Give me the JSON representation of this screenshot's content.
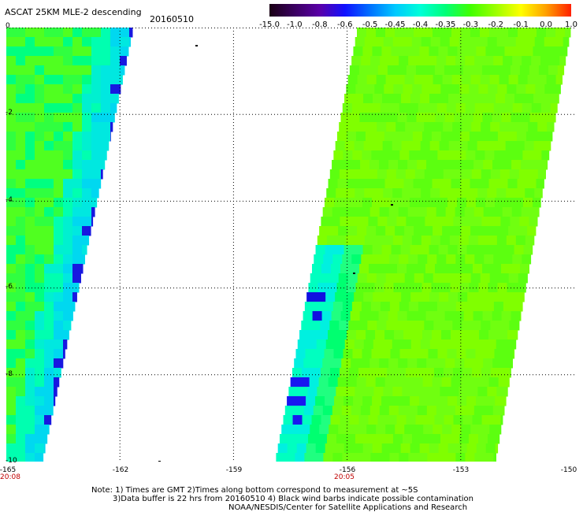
{
  "header": {
    "title": "ASCAT 25KM MLE-2 descending",
    "date": "20160510"
  },
  "colorbar": {
    "labels": [
      "-15.0",
      "-1.0",
      "-0.8",
      "-0.6",
      "-0.5",
      "-0.45",
      "-0.4",
      "-0.35",
      "-0.3",
      "-0.2",
      "-0.1",
      "0.0",
      "1.0"
    ],
    "colors": [
      "#1a0014",
      "#3a0060",
      "#5a00a8",
      "#1010ff",
      "#0070ff",
      "#00c8ff",
      "#00ffd8",
      "#00ff78",
      "#40ff00",
      "#9cff00",
      "#ffff00",
      "#ffa000",
      "#ff2000"
    ]
  },
  "map": {
    "lon_ticks": [
      "-165",
      "-162",
      "-159",
      "-156",
      "-153",
      "-150"
    ],
    "lat_ticks": [
      "0",
      "-2",
      "-4",
      "-6",
      "-8",
      "-10"
    ],
    "times": [
      {
        "lon": "-165",
        "label": "20:08"
      },
      {
        "lon": "-156",
        "label": "20:05"
      }
    ],
    "lon_range": [
      -165,
      -150
    ],
    "lat_range": [
      0,
      -10
    ]
  },
  "notes": {
    "line1": "Note: 1) Times are GMT 2)Times along bottom correspond to measurement at ~5S",
    "line2": "3)Data buffer is 22 hrs from 20160510 4) Black wind barbs indicate possible contamination",
    "line3": "NOAA/NESDIS/Center for Satellite Applications and Research"
  }
}
